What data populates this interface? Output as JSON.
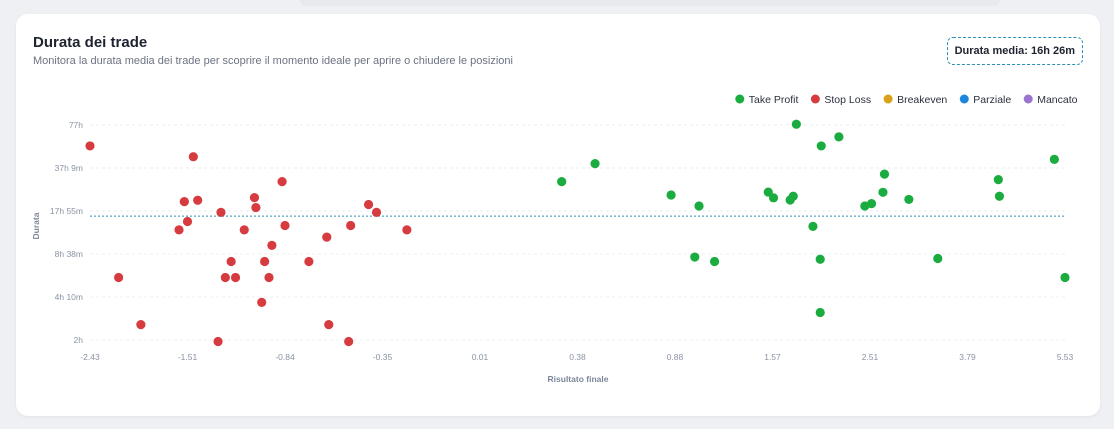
{
  "header": {
    "title": "Durata dei trade",
    "subtitle": "Monitora la durata media dei trade per scoprire il momento ideale per aprire o chiudere le posizioni",
    "avg_badge": "Durata media: 16h 26m"
  },
  "chart_data": {
    "type": "scatter",
    "xlabel": "Risultato finale",
    "ylabel": "Durata",
    "xticks": [
      "-2.43",
      "-1.51",
      "-0.84",
      "-0.35",
      "0.01",
      "0.38",
      "0.88",
      "1.57",
      "2.51",
      "3.79",
      "5.53"
    ],
    "yticks": [
      "2h",
      "4h 10m",
      "8h 38m",
      "17h 55m",
      "37h 9m",
      "77h"
    ],
    "average_line": "16h 26m",
    "grid": true,
    "legend_position": "top-right",
    "legend": [
      {
        "name": "Take Profit",
        "color": "#1aac3f"
      },
      {
        "name": "Stop Loss",
        "color": "#d63b3f"
      },
      {
        "name": "Breakeven",
        "color": "#d7a21a"
      },
      {
        "name": "Parziale",
        "color": "#1f86e0"
      },
      {
        "name": "Mancato",
        "color": "#9b74cf"
      }
    ],
    "series": [
      {
        "name": "Take Profit",
        "color": "#1aac3f",
        "points": [
          [
            0.32,
            29.5
          ],
          [
            0.47,
            40
          ],
          [
            0.86,
            23.5
          ],
          [
            1.02,
            8.2
          ],
          [
            1.05,
            19.5
          ],
          [
            1.16,
            7.6
          ],
          [
            1.54,
            24.7
          ],
          [
            1.58,
            22.4
          ],
          [
            1.74,
            21.6
          ],
          [
            1.77,
            23
          ],
          [
            1.8,
            78
          ],
          [
            1.96,
            13.8
          ],
          [
            2.03,
            3.2
          ],
          [
            2.03,
            7.9
          ],
          [
            2.04,
            54
          ],
          [
            2.21,
            63
          ],
          [
            2.46,
            19.5
          ],
          [
            2.53,
            20.3
          ],
          [
            2.68,
            24.6
          ],
          [
            2.7,
            33.5
          ],
          [
            3.02,
            21.8
          ],
          [
            3.4,
            8.0
          ],
          [
            4.34,
            30.5
          ],
          [
            4.36,
            23.0
          ],
          [
            5.34,
            43
          ],
          [
            5.53,
            5.8
          ]
        ]
      },
      {
        "name": "Stop Loss",
        "color": "#d63b3f",
        "points": [
          [
            -2.43,
            54
          ],
          [
            -2.16,
            5.8
          ],
          [
            -1.95,
            2.6
          ],
          [
            -1.59,
            13
          ],
          [
            -1.54,
            21
          ],
          [
            -1.51,
            15
          ],
          [
            -1.47,
            45
          ],
          [
            -1.44,
            21.5
          ],
          [
            -1.3,
            1.95
          ],
          [
            -1.28,
            17.5
          ],
          [
            -1.25,
            5.8
          ],
          [
            -1.21,
            7.6
          ],
          [
            -1.18,
            5.8
          ],
          [
            -1.12,
            13
          ],
          [
            -1.05,
            22.5
          ],
          [
            -1.04,
            19
          ],
          [
            -1.0,
            3.8
          ],
          [
            -0.98,
            7.6
          ],
          [
            -0.95,
            5.8
          ],
          [
            -0.93,
            10
          ],
          [
            -0.86,
            29.5
          ],
          [
            -0.84,
            14
          ],
          [
            -0.72,
            7.6
          ],
          [
            -0.63,
            11.5
          ],
          [
            -0.62,
            2.6
          ],
          [
            -0.52,
            1.95
          ],
          [
            -0.51,
            14
          ],
          [
            -0.42,
            20
          ],
          [
            -0.38,
            17.5
          ],
          [
            -0.26,
            13
          ]
        ]
      },
      {
        "name": "Breakeven",
        "color": "#d7a21a",
        "points": []
      },
      {
        "name": "Parziale",
        "color": "#1f86e0",
        "points": []
      },
      {
        "name": "Mancato",
        "color": "#9b74cf",
        "points": []
      }
    ]
  }
}
